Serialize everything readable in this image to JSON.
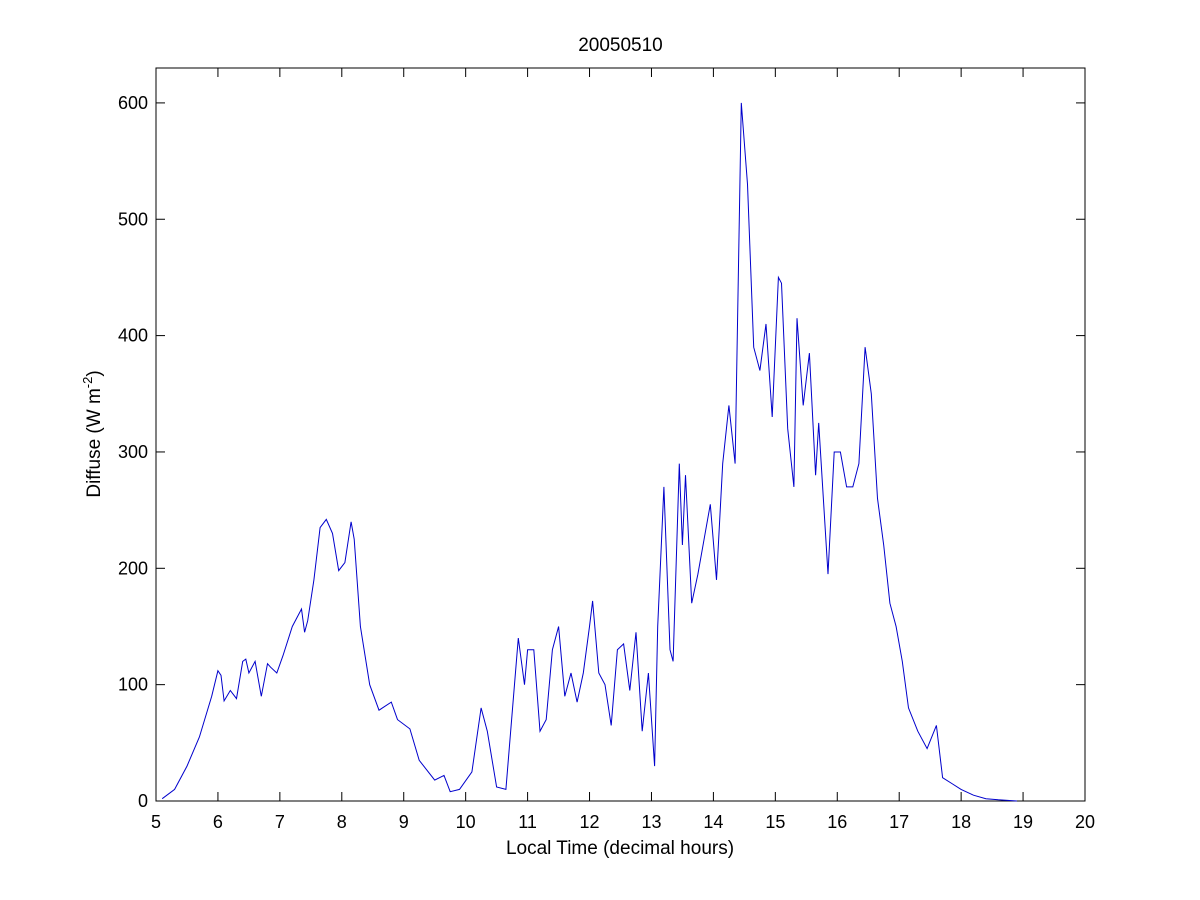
{
  "chart_data": {
    "type": "line",
    "title": "20050510",
    "xlabel": "Local Time (decimal hours)",
    "ylabel": {
      "base": "Diffuse (W m",
      "superscript": "-2",
      "close": ")"
    },
    "xlim": [
      5,
      20
    ],
    "ylim": [
      0,
      630
    ],
    "xticks": [
      5,
      6,
      7,
      8,
      9,
      10,
      11,
      12,
      13,
      14,
      15,
      16,
      17,
      18,
      19,
      20
    ],
    "yticks": [
      0,
      100,
      200,
      300,
      400,
      500,
      600
    ],
    "xtick_labels": [
      "5",
      "6",
      "7",
      "8",
      "9",
      "10",
      "11",
      "12",
      "13",
      "14",
      "15",
      "16",
      "17",
      "18",
      "19",
      "20"
    ],
    "ytick_labels": [
      "0",
      "100",
      "200",
      "300",
      "400",
      "500",
      "600"
    ],
    "grid": false,
    "line_color": "#0000cc",
    "series": [
      {
        "x": [
          5.1,
          5.3,
          5.5,
          5.7,
          5.9,
          6.0,
          6.05,
          6.1,
          6.2,
          6.3,
          6.4,
          6.45,
          6.5,
          6.6,
          6.7,
          6.8,
          6.85,
          6.95,
          7.05,
          7.2,
          7.35,
          7.4,
          7.45,
          7.55,
          7.65,
          7.75,
          7.85,
          7.95,
          8.05,
          8.15,
          8.2,
          8.3,
          8.45,
          8.6,
          8.8,
          8.9,
          9.1,
          9.25,
          9.5,
          9.65,
          9.75,
          9.9,
          10.1,
          10.25,
          10.35,
          10.5,
          10.65,
          10.85,
          10.95,
          11.0,
          11.1,
          11.2,
          11.3,
          11.4,
          11.5,
          11.6,
          11.7,
          11.8,
          11.9,
          12.0,
          12.05,
          12.15,
          12.25,
          12.35,
          12.45,
          12.55,
          12.65,
          12.75,
          12.85,
          12.95,
          13.05,
          13.1,
          13.2,
          13.3,
          13.35,
          13.45,
          13.5,
          13.55,
          13.65,
          13.75,
          13.85,
          13.95,
          14.05,
          14.15,
          14.25,
          14.35,
          14.45,
          14.55,
          14.65,
          14.75,
          14.85,
          14.95,
          15.05,
          15.1,
          15.2,
          15.3,
          15.35,
          15.45,
          15.55,
          15.65,
          15.7,
          15.85,
          15.95,
          16.05,
          16.15,
          16.25,
          16.35,
          16.45,
          16.55,
          16.65,
          16.75,
          16.85,
          16.95,
          17.05,
          17.15,
          17.3,
          17.45,
          17.6,
          17.7,
          17.85,
          18.0,
          18.2,
          18.4,
          18.6,
          18.9
        ],
        "y": [
          2,
          10,
          30,
          55,
          90,
          112,
          108,
          86,
          95,
          88,
          120,
          122,
          110,
          120,
          90,
          118,
          115,
          110,
          125,
          150,
          165,
          145,
          155,
          190,
          235,
          242,
          230,
          198,
          205,
          240,
          225,
          150,
          100,
          78,
          85,
          70,
          62,
          35,
          18,
          22,
          8,
          10,
          25,
          80,
          60,
          12,
          10,
          140,
          100,
          130,
          130,
          60,
          70,
          130,
          150,
          90,
          110,
          85,
          110,
          150,
          172,
          110,
          100,
          65,
          130,
          135,
          95,
          145,
          60,
          110,
          30,
          150,
          270,
          130,
          120,
          290,
          220,
          280,
          170,
          195,
          225,
          255,
          190,
          290,
          340,
          290,
          600,
          530,
          390,
          370,
          410,
          330,
          450,
          445,
          320,
          270,
          415,
          340,
          385,
          280,
          325,
          195,
          300,
          300,
          270,
          270,
          290,
          390,
          350,
          260,
          220,
          170,
          150,
          120,
          80,
          60,
          45,
          65,
          20,
          15,
          10,
          5,
          2,
          1,
          0
        ]
      }
    ]
  }
}
